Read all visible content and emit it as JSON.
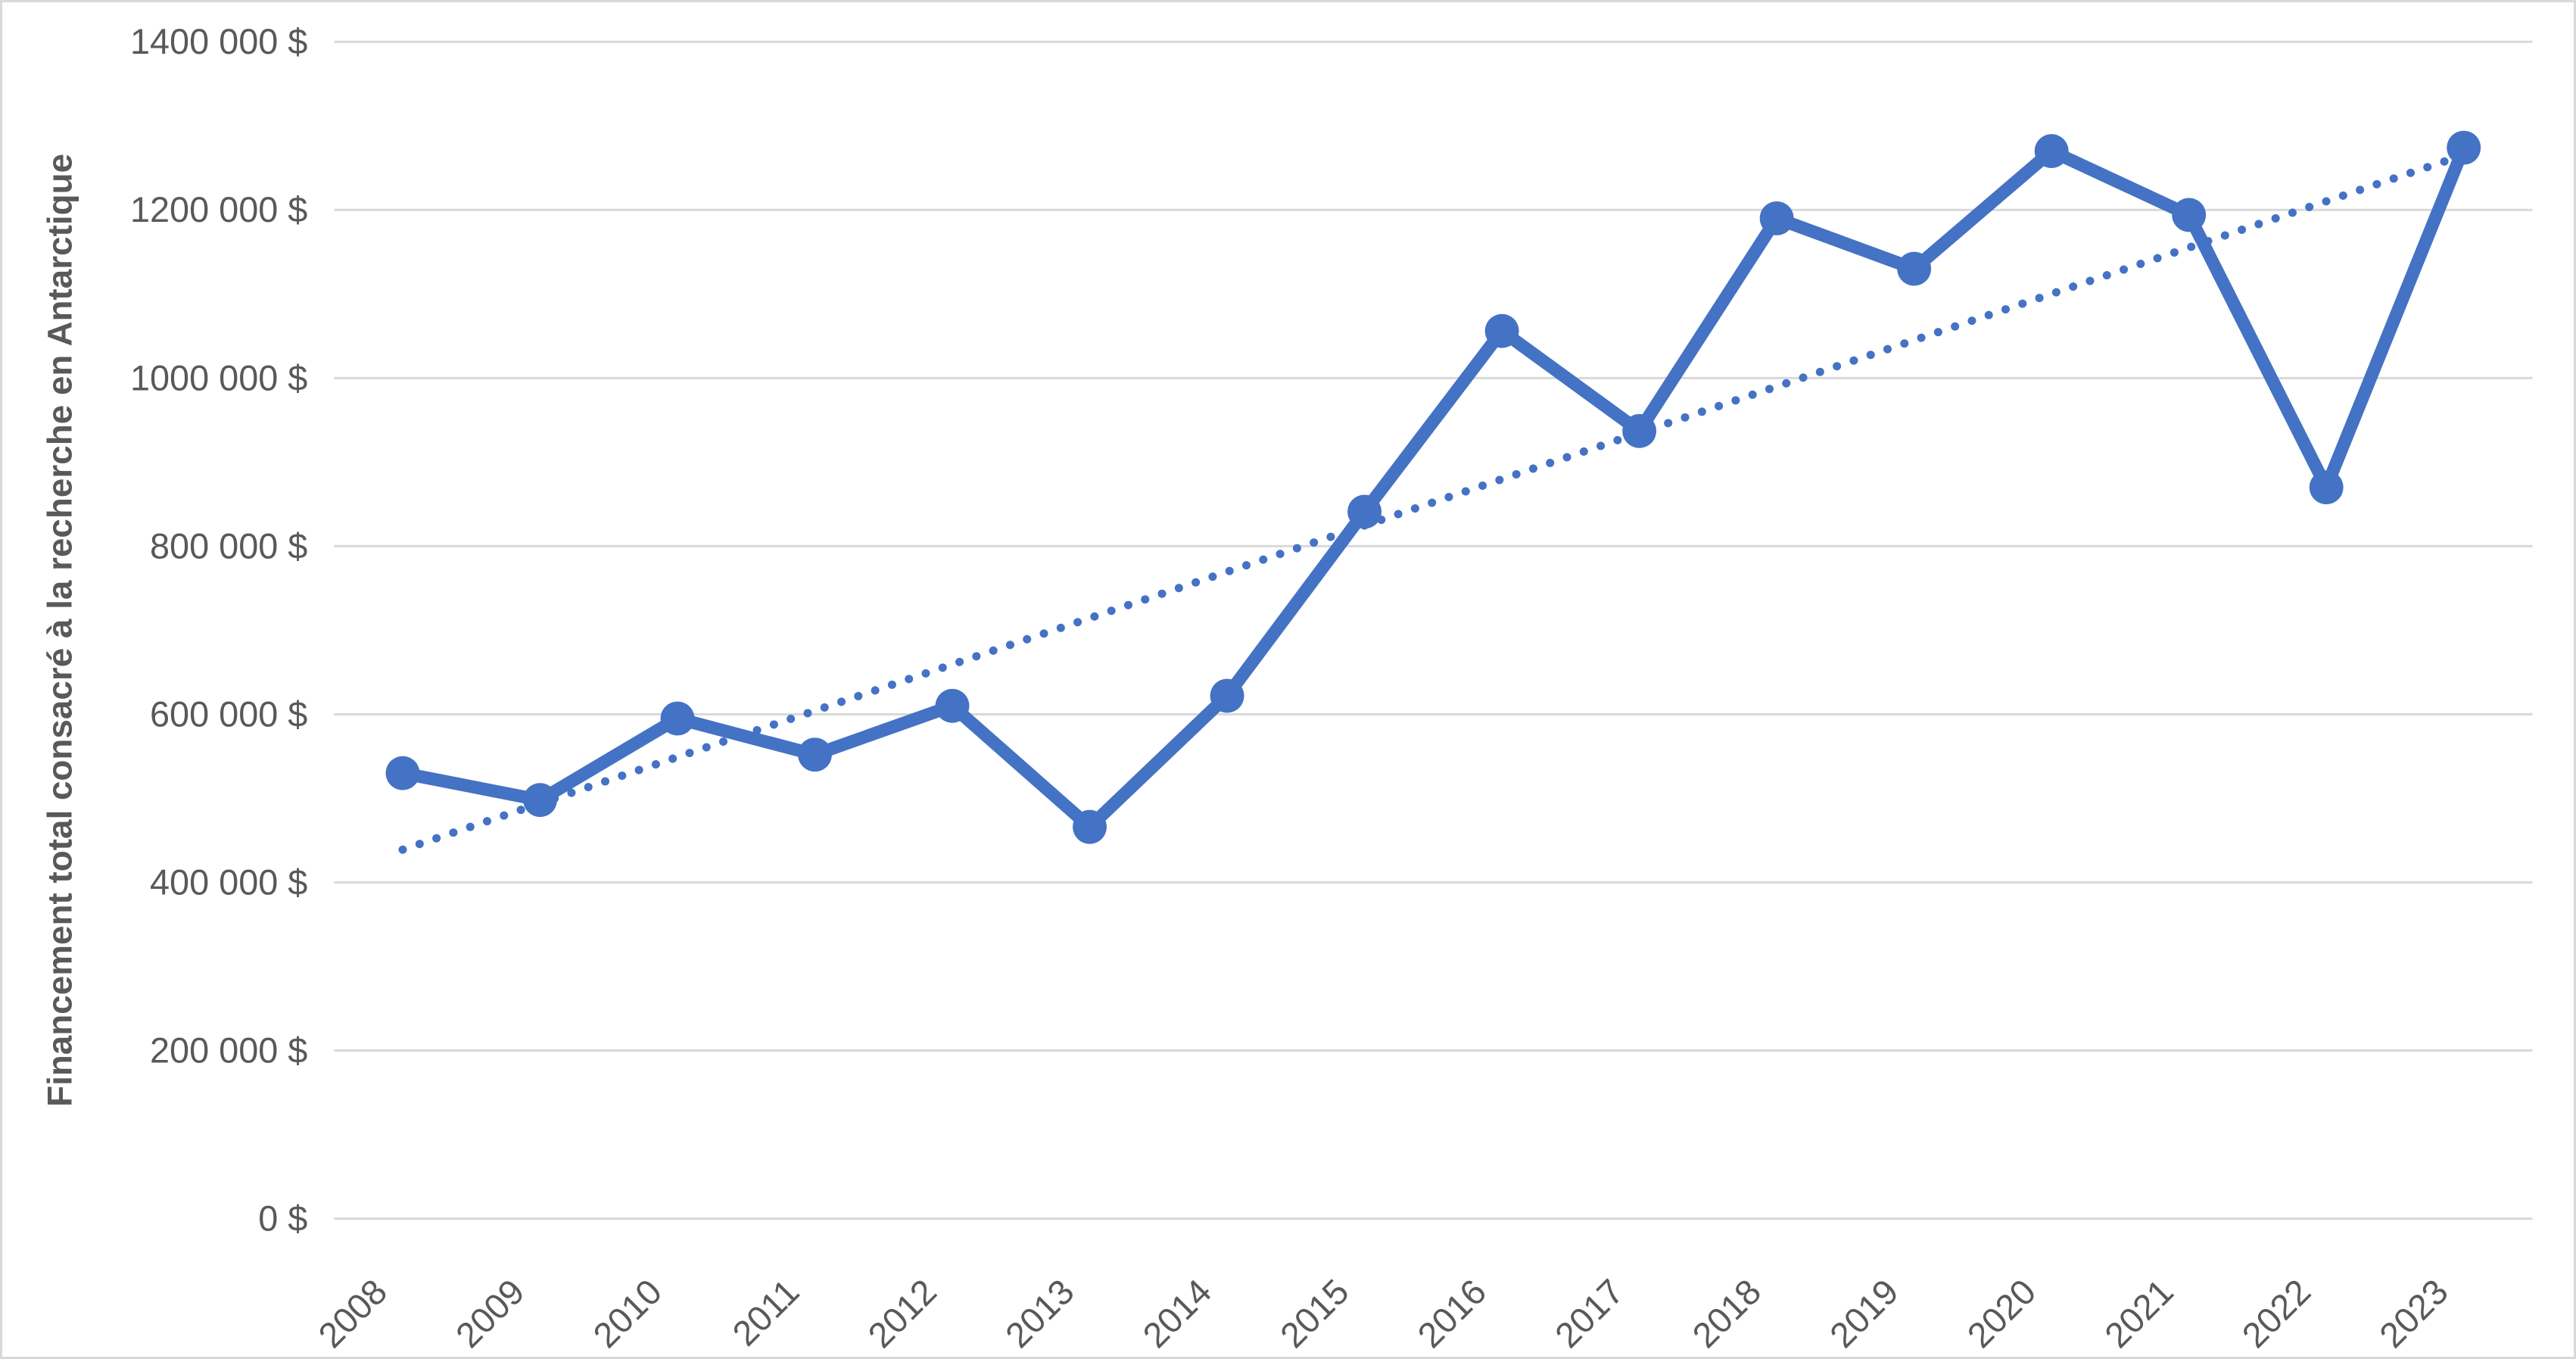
{
  "chart": {
    "y_axis_title": "Financement total consacré à la recherche en Antarctique",
    "colors": {
      "series_blue": "#4472C4",
      "gridline_gray": "#d9d9d9",
      "label_gray": "#595959",
      "background": "#ffffff"
    }
  },
  "chart_data": {
    "type": "line",
    "title": "",
    "categories": [
      "2008",
      "2009",
      "2010",
      "2011",
      "2012",
      "2013",
      "2014",
      "2015",
      "2016",
      "2017",
      "2018",
      "2019",
      "2020",
      "2021",
      "2022",
      "2023"
    ],
    "series": [
      {
        "name": "Financement total consacré à la recherche en Antarctique",
        "values": [
          530000,
          498000,
          595000,
          552000,
          610000,
          466000,
          622000,
          841000,
          1056000,
          937000,
          1190000,
          1130000,
          1270000,
          1194000,
          870000,
          1274000
        ]
      }
    ],
    "xlabel": "",
    "ylabel": "Financement total consacré à la recherche en Antarctique",
    "ylim": [
      0,
      1400000
    ],
    "ytick_step": 200000,
    "ytick_labels": [
      "0 $",
      "200 000 $",
      "400 000 $",
      "600 000 $",
      "800 000 $",
      "1000 000 $",
      "1200 000 $",
      "1400 000 $"
    ],
    "xtick_rotation_deg": -45,
    "grid": true,
    "legend": false,
    "marker": "circle",
    "trendline": {
      "type": "linear",
      "style": "dotted"
    }
  }
}
